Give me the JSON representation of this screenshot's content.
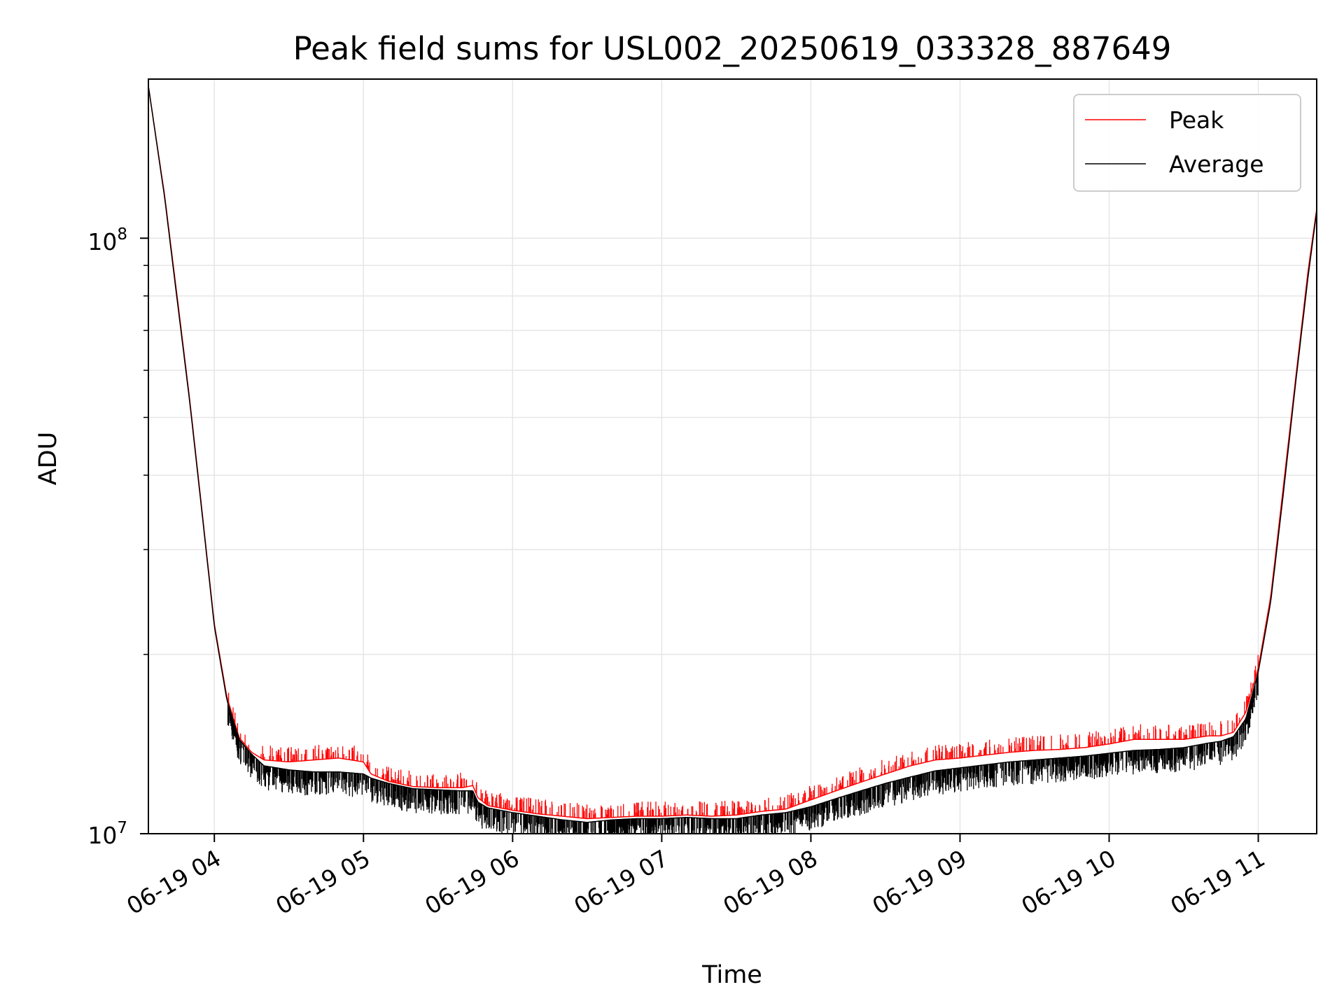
{
  "chart_data": {
    "type": "line",
    "title": "Peak field sums for USL002_20250619_033328_887649",
    "xlabel": "Time",
    "ylabel": "ADU",
    "yscale": "log",
    "ylim": [
      10000000,
      185000000
    ],
    "xlim": [
      "2025-06-19T03:33:28",
      "2025-06-19T11:23:30"
    ],
    "grid": true,
    "legend_position": "top-right",
    "x_ticks": [
      "06-19 04",
      "06-19 05",
      "06-19 06",
      "06-19 07",
      "06-19 08",
      "06-19 09",
      "06-19 10",
      "06-19 11"
    ],
    "y_ticks": [
      {
        "base": "10",
        "exp": "7"
      },
      {
        "base": "10",
        "exp": "8"
      }
    ],
    "series": [
      {
        "name": "Peak",
        "color": "#ff0000",
        "x": [
          "2025-06-19T03:33:28",
          "2025-06-19T03:40",
          "2025-06-19T03:45",
          "2025-06-19T03:50",
          "2025-06-19T03:55",
          "2025-06-19T04:00",
          "2025-06-19T04:05",
          "2025-06-19T04:10",
          "2025-06-19T04:15",
          "2025-06-19T04:20",
          "2025-06-19T04:30",
          "2025-06-19T04:40",
          "2025-06-19T04:50",
          "2025-06-19T05:00",
          "2025-06-19T05:03",
          "2025-06-19T05:10",
          "2025-06-19T05:20",
          "2025-06-19T05:30",
          "2025-06-19T05:40",
          "2025-06-19T05:44",
          "2025-06-19T05:46",
          "2025-06-19T05:50",
          "2025-06-19T06:00",
          "2025-06-19T06:10",
          "2025-06-19T06:20",
          "2025-06-19T06:30",
          "2025-06-19T06:40",
          "2025-06-19T06:50",
          "2025-06-19T07:00",
          "2025-06-19T07:10",
          "2025-06-19T07:20",
          "2025-06-19T07:30",
          "2025-06-19T07:40",
          "2025-06-19T07:50",
          "2025-06-19T08:00",
          "2025-06-19T08:10",
          "2025-06-19T08:20",
          "2025-06-19T08:30",
          "2025-06-19T08:40",
          "2025-06-19T08:50",
          "2025-06-19T09:00",
          "2025-06-19T09:10",
          "2025-06-19T09:20",
          "2025-06-19T09:30",
          "2025-06-19T09:40",
          "2025-06-19T09:50",
          "2025-06-19T10:00",
          "2025-06-19T10:10",
          "2025-06-19T10:20",
          "2025-06-19T10:30",
          "2025-06-19T10:40",
          "2025-06-19T10:45",
          "2025-06-19T10:50",
          "2025-06-19T10:55",
          "2025-06-19T11:00",
          "2025-06-19T11:05",
          "2025-06-19T11:10",
          "2025-06-19T11:15",
          "2025-06-19T11:20",
          "2025-06-19T11:23:30"
        ],
        "values": [
          180000000,
          118000000,
          80000000,
          54000000,
          35000000,
          22500000,
          17000000,
          14500000,
          13700000,
          13300000,
          13200000,
          13300000,
          13400000,
          13200000,
          12600000,
          12250000,
          12000000,
          11950000,
          11950000,
          12050000,
          11500000,
          11150000,
          10950000,
          10800000,
          10700000,
          10600000,
          10650000,
          10700000,
          10700000,
          10750000,
          10700000,
          10750000,
          10900000,
          11000000,
          11400000,
          11800000,
          12200000,
          12600000,
          13000000,
          13300000,
          13400000,
          13550000,
          13700000,
          13800000,
          13850000,
          13950000,
          14150000,
          14400000,
          14400000,
          14400000,
          14600000,
          14600000,
          14800000,
          16000000,
          19000000,
          25000000,
          38000000,
          58000000,
          88000000,
          112000000
        ]
      },
      {
        "name": "Average",
        "color": "#000000",
        "x": [
          "2025-06-19T03:33:28",
          "2025-06-19T03:40",
          "2025-06-19T03:45",
          "2025-06-19T03:50",
          "2025-06-19T03:55",
          "2025-06-19T04:00",
          "2025-06-19T04:05",
          "2025-06-19T04:10",
          "2025-06-19T04:15",
          "2025-06-19T04:20",
          "2025-06-19T04:30",
          "2025-06-19T04:40",
          "2025-06-19T04:50",
          "2025-06-19T05:00",
          "2025-06-19T05:03",
          "2025-06-19T05:10",
          "2025-06-19T05:20",
          "2025-06-19T05:30",
          "2025-06-19T05:40",
          "2025-06-19T05:44",
          "2025-06-19T05:46",
          "2025-06-19T05:50",
          "2025-06-19T06:00",
          "2025-06-19T06:10",
          "2025-06-19T06:20",
          "2025-06-19T06:30",
          "2025-06-19T06:40",
          "2025-06-19T06:50",
          "2025-06-19T07:00",
          "2025-06-19T07:10",
          "2025-06-19T07:20",
          "2025-06-19T07:30",
          "2025-06-19T07:40",
          "2025-06-19T07:50",
          "2025-06-19T08:00",
          "2025-06-19T08:10",
          "2025-06-19T08:20",
          "2025-06-19T08:30",
          "2025-06-19T08:40",
          "2025-06-19T08:50",
          "2025-06-19T09:00",
          "2025-06-19T09:10",
          "2025-06-19T09:20",
          "2025-06-19T09:30",
          "2025-06-19T09:40",
          "2025-06-19T09:50",
          "2025-06-19T10:00",
          "2025-06-19T10:10",
          "2025-06-19T10:20",
          "2025-06-19T10:30",
          "2025-06-19T10:40",
          "2025-06-19T10:45",
          "2025-06-19T10:50",
          "2025-06-19T10:55",
          "2025-06-19T11:00",
          "2025-06-19T11:05",
          "2025-06-19T11:10",
          "2025-06-19T11:15",
          "2025-06-19T11:20",
          "2025-06-19T11:23:30"
        ],
        "values": [
          180000000,
          117000000,
          79000000,
          53500000,
          34700000,
          22300000,
          16800000,
          14400000,
          13600000,
          13000000,
          12800000,
          12700000,
          12700000,
          12600000,
          12400000,
          12150000,
          11900000,
          11850000,
          11800000,
          11800000,
          11300000,
          11050000,
          10850000,
          10700000,
          10550000,
          10450000,
          10550000,
          10600000,
          10600000,
          10650000,
          10600000,
          10600000,
          10750000,
          10850000,
          11100000,
          11450000,
          11800000,
          12150000,
          12450000,
          12750000,
          12900000,
          13050000,
          13200000,
          13300000,
          13400000,
          13500000,
          13650000,
          13800000,
          13850000,
          13950000,
          14200000,
          14300000,
          14550000,
          15600000,
          18700000,
          24500000,
          37000000,
          57000000,
          86000000,
          111000000
        ]
      }
    ]
  }
}
